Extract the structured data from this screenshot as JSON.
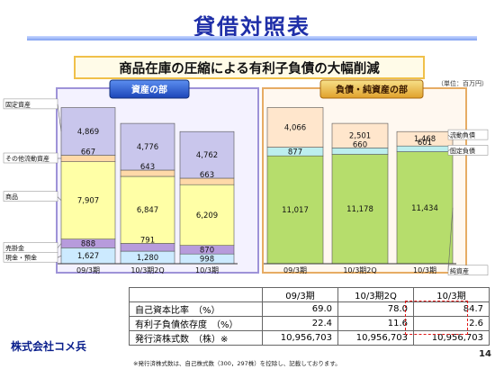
{
  "title": "貸借対照表",
  "subtitle": "商品在庫の圧縮による有利子負債の大幅削減",
  "unit_note": "（単位：百万円）",
  "logo_text": "株式会社コメ兵",
  "page_number": "14",
  "footnote": "※発行済株式数は、自己株式数（300，297株）を控除し、記載しております。",
  "colors": {
    "title": "#1f2fa8",
    "fixed_assets": "#c9c6ec",
    "other_current": "#ffd9a8",
    "inventory": "#ffffa6",
    "receivables": "#b79bdc",
    "cash": "#cceaff",
    "current_liabilities": "#ffe6cc",
    "fixed_liabilities": "#bdeeee",
    "net_assets": "#b6dd6c",
    "panel_border_left": "#9e93d8",
    "panel_border_right": "#e6ac64",
    "highlight": "#e01818"
  },
  "chart_data": [
    {
      "type": "bar",
      "stacked": true,
      "title": "資産の部",
      "categories": [
        "09/3期",
        "10/3期2Q",
        "10/3期"
      ],
      "series": [
        {
          "name": "現金・預金",
          "values": [
            1627,
            1280,
            998
          ]
        },
        {
          "name": "売掛金",
          "values": [
            888,
            791,
            870
          ]
        },
        {
          "name": "商品",
          "values": [
            7907,
            6847,
            6209
          ]
        },
        {
          "name": "その他流動資産",
          "values": [
            667,
            643,
            663
          ]
        },
        {
          "name": "固定資産",
          "values": [
            4869,
            4776,
            4762
          ]
        }
      ],
      "value_labels": [
        [
          "1,627",
          "1,280",
          "998"
        ],
        [
          "888",
          "791",
          "870"
        ],
        [
          "7,907",
          "6,847",
          "6,209"
        ],
        [
          "667",
          "643",
          "663"
        ],
        [
          "4,869",
          "4,776",
          "4,762"
        ]
      ],
      "ylim": [
        0,
        16000
      ],
      "grid": false,
      "legend": "left"
    },
    {
      "type": "bar",
      "stacked": true,
      "title": "負債・純資産の部",
      "categories": [
        "09/3期",
        "10/3期2Q",
        "10/3期"
      ],
      "series": [
        {
          "name": "純資産",
          "values": [
            11017,
            11178,
            11434
          ]
        },
        {
          "name": "固定負債",
          "values": [
            877,
            660,
            601
          ]
        },
        {
          "name": "流動負債",
          "values": [
            4066,
            2501,
            1468
          ]
        }
      ],
      "value_labels": [
        [
          "11,017",
          "11,178",
          "11,434"
        ],
        [
          "877",
          "660",
          "601"
        ],
        [
          "4,066",
          "2,501",
          "1,468"
        ]
      ],
      "ylim": [
        0,
        16000
      ],
      "grid": false,
      "legend": "right"
    },
    {
      "type": "table",
      "columns": [
        "",
        "09/3期",
        "10/3期2Q",
        "10/3期"
      ],
      "rows": [
        {
          "label": "自己資本比率　（%）",
          "values": [
            "69.0",
            "78.0",
            "84.7"
          ]
        },
        {
          "label": "有利子負債依存度　（%）",
          "values": [
            "22.4",
            "11.6",
            "2.6"
          ]
        },
        {
          "label": "発行済株式数　（株）※",
          "values": [
            "10,956,703",
            "10,956,703",
            "10,956,703"
          ]
        }
      ]
    }
  ]
}
